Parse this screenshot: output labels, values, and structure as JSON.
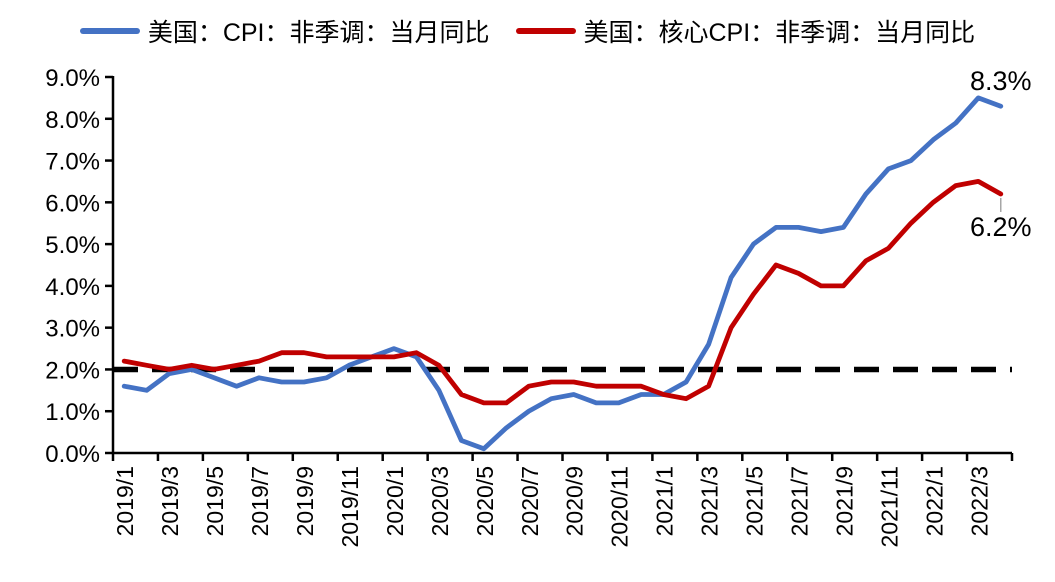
{
  "chart_data": {
    "type": "line",
    "title": "",
    "x": [
      "2019/1",
      "2019/2",
      "2019/3",
      "2019/4",
      "2019/5",
      "2019/6",
      "2019/7",
      "2019/8",
      "2019/9",
      "2019/10",
      "2019/11",
      "2019/12",
      "2020/1",
      "2020/2",
      "2020/3",
      "2020/4",
      "2020/5",
      "2020/6",
      "2020/7",
      "2020/8",
      "2020/9",
      "2020/10",
      "2020/11",
      "2020/12",
      "2021/1",
      "2021/2",
      "2021/3",
      "2021/4",
      "2021/5",
      "2021/6",
      "2021/7",
      "2021/8",
      "2021/9",
      "2021/10",
      "2021/11",
      "2021/12",
      "2022/1",
      "2022/2",
      "2022/3",
      "2022/4"
    ],
    "series": [
      {
        "name": "美国：CPI：非季调：当月同比",
        "color": "#4472C4",
        "values": [
          1.6,
          1.5,
          1.9,
          2.0,
          1.8,
          1.6,
          1.8,
          1.7,
          1.7,
          1.8,
          2.1,
          2.3,
          2.5,
          2.3,
          1.5,
          0.3,
          0.1,
          0.6,
          1.0,
          1.3,
          1.4,
          1.2,
          1.2,
          1.4,
          1.4,
          1.7,
          2.6,
          4.2,
          5.0,
          5.4,
          5.4,
          5.3,
          5.4,
          6.2,
          6.8,
          7.0,
          7.5,
          7.9,
          8.5,
          8.3
        ]
      },
      {
        "name": "美国：核心CPI：非季调：当月同比",
        "color": "#C00000",
        "values": [
          2.2,
          2.1,
          2.0,
          2.1,
          2.0,
          2.1,
          2.2,
          2.4,
          2.4,
          2.3,
          2.3,
          2.3,
          2.3,
          2.4,
          2.1,
          1.4,
          1.2,
          1.2,
          1.6,
          1.7,
          1.7,
          1.6,
          1.6,
          1.6,
          1.4,
          1.3,
          1.6,
          3.0,
          3.8,
          4.5,
          4.3,
          4.0,
          4.0,
          4.6,
          4.9,
          5.5,
          6.0,
          6.4,
          6.5,
          6.2
        ]
      }
    ],
    "y_axis": {
      "min": 0,
      "max": 9,
      "tick_step": 1,
      "tick_labels": [
        "0.0%",
        "1.0%",
        "2.0%",
        "3.0%",
        "4.0%",
        "5.0%",
        "6.0%",
        "7.0%",
        "8.0%",
        "9.0%"
      ]
    },
    "x_tick_labels": [
      "2019/1",
      "2019/3",
      "2019/5",
      "2019/7",
      "2019/9",
      "2019/11",
      "2020/1",
      "2020/3",
      "2020/5",
      "2020/7",
      "2020/9",
      "2020/11",
      "2021/1",
      "2021/3",
      "2021/5",
      "2021/7",
      "2021/9",
      "2021/11",
      "2022/1",
      "2022/3"
    ],
    "reference_line": {
      "value": 2.0,
      "style": "dashed",
      "color": "#000000"
    },
    "annotations": [
      {
        "series_index": 0,
        "label": "8.3%"
      },
      {
        "series_index": 1,
        "label": "6.2%"
      }
    ],
    "legend_position": "top",
    "grid": false,
    "colors": {
      "axis": "#000000",
      "text": "#000000",
      "leader": "#A6A6A6",
      "background": "#FFFFFF"
    }
  }
}
